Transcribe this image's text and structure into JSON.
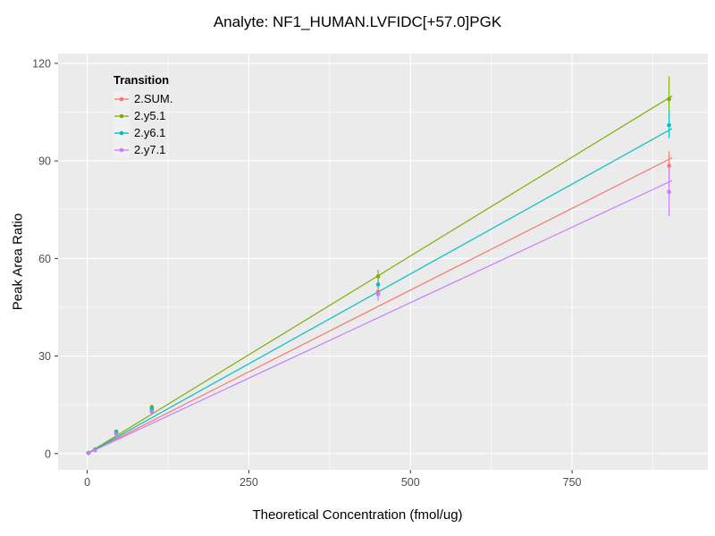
{
  "chart_data": {
    "type": "scatter-line",
    "title": "Analyte: NF1_HUMAN.LVFIDC[+57.0]PGK",
    "xlabel": "Theoretical Concentration (fmol/ug)",
    "ylabel": "Peak Area Ratio",
    "xlim": [
      -45,
      960
    ],
    "ylim": [
      -5,
      123
    ],
    "x_ticks": [
      0,
      250,
      500,
      750
    ],
    "x_minor_ticks": [
      125,
      375,
      625,
      875
    ],
    "y_ticks": [
      0,
      30,
      60,
      90,
      120
    ],
    "y_minor_ticks": [
      15,
      45,
      75,
      105
    ],
    "grid": "on",
    "panel_color": "#EBEBEB",
    "grid_color": "#FFFFFF",
    "tick_label_color": "#4D4D4D",
    "legend_title": "Transition",
    "legend_position": "inside-top-left",
    "series": [
      {
        "name": "2.SUM.",
        "color": "#F8766D",
        "points": [
          {
            "x": 2,
            "y": 0.2
          },
          {
            "x": 12,
            "y": 1.1
          },
          {
            "x": 45,
            "y": 6.2,
            "err": [
              5.7,
              6.7
            ]
          },
          {
            "x": 100,
            "y": 13.3,
            "err": [
              12.6,
              14.0
            ]
          },
          {
            "x": 450,
            "y": 49.8,
            "err": [
              48.3,
              51.3
            ]
          },
          {
            "x": 900,
            "y": 88.5,
            "err": [
              84.5,
              93.0
            ]
          }
        ],
        "fit_line": {
          "x1": 0,
          "y1": 0,
          "x2": 905,
          "y2": 91
        }
      },
      {
        "name": "2.y5.1",
        "color": "#7CAE00",
        "points": [
          {
            "x": 2,
            "y": 0.25
          },
          {
            "x": 12,
            "y": 1.3
          },
          {
            "x": 45,
            "y": 6.8,
            "err": [
              6.3,
              7.3
            ]
          },
          {
            "x": 100,
            "y": 14.3,
            "err": [
              13.5,
              15.1
            ]
          },
          {
            "x": 450,
            "y": 54.5,
            "err": [
              52.5,
              56.5
            ]
          },
          {
            "x": 900,
            "y": 109.0,
            "err": [
              103.0,
              116.0
            ]
          }
        ],
        "fit_line": {
          "x1": 0,
          "y1": 0,
          "x2": 905,
          "y2": 110
        }
      },
      {
        "name": "2.y6.1",
        "color": "#00BFC4",
        "points": [
          {
            "x": 2,
            "y": 0.22
          },
          {
            "x": 12,
            "y": 1.2
          },
          {
            "x": 45,
            "y": 6.5,
            "err": [
              6.1,
              6.9
            ]
          },
          {
            "x": 100,
            "y": 13.7,
            "err": [
              13.0,
              14.4
            ]
          },
          {
            "x": 450,
            "y": 52.0,
            "err": [
              50.5,
              53.5
            ]
          },
          {
            "x": 900,
            "y": 101.0,
            "err": [
              97.0,
              105.5
            ]
          }
        ],
        "fit_line": {
          "x1": 0,
          "y1": 0,
          "x2": 905,
          "y2": 100
        }
      },
      {
        "name": "2.y7.1",
        "color": "#C77CFF",
        "points": [
          {
            "x": 2,
            "y": 0.2
          },
          {
            "x": 12,
            "y": 1.0
          },
          {
            "x": 45,
            "y": 6.0,
            "err": [
              5.5,
              6.5
            ]
          },
          {
            "x": 100,
            "y": 12.9,
            "err": [
              12.2,
              13.6
            ]
          },
          {
            "x": 450,
            "y": 49.0,
            "err": [
              47.0,
              51.0
            ]
          },
          {
            "x": 900,
            "y": 80.5,
            "err": [
              73.0,
              87.5
            ]
          }
        ],
        "fit_line": {
          "x1": 0,
          "y1": 0,
          "x2": 905,
          "y2": 84
        }
      }
    ]
  }
}
